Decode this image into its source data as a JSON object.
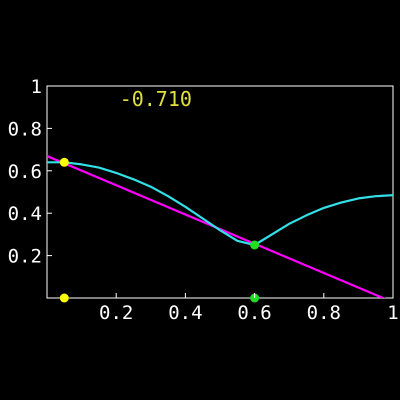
{
  "chart_data": {
    "type": "line",
    "title": "",
    "xlabel": "",
    "ylabel": "",
    "xlim": [
      0,
      1
    ],
    "ylim": [
      0,
      1
    ],
    "grid": false,
    "background": "#000000",
    "frame_color": "#ffffff",
    "x_tick_labels": [
      "0.2",
      "0.4",
      "0.6",
      "0.8",
      "1"
    ],
    "x_tick_values": [
      0.2,
      0.4,
      0.6,
      0.8,
      1.0
    ],
    "y_tick_labels": [
      "0.2",
      "0.4",
      "0.6",
      "0.8",
      "1"
    ],
    "y_tick_values": [
      0.2,
      0.4,
      0.6,
      0.8,
      1.0
    ],
    "annotation": {
      "text": "-0.710",
      "color": "#e0e040",
      "anchor_data": [
        0.21,
        0.905
      ]
    },
    "series": [
      {
        "color": "#ff00ff",
        "x": [
          0.0,
          1.0
        ],
        "y": [
          0.67,
          -0.02
        ]
      },
      {
        "color": "#33e0e8",
        "x": [
          0.0,
          0.05,
          0.1,
          0.15,
          0.2,
          0.25,
          0.3,
          0.35,
          0.4,
          0.45,
          0.5,
          0.55,
          0.6,
          0.65,
          0.7,
          0.75,
          0.8,
          0.85,
          0.9,
          0.95,
          1.0
        ],
        "y": [
          0.64,
          0.64,
          0.63,
          0.615,
          0.59,
          0.56,
          0.525,
          0.48,
          0.43,
          0.375,
          0.32,
          0.27,
          0.25,
          0.3,
          0.35,
          0.39,
          0.425,
          0.45,
          0.47,
          0.48,
          0.485
        ]
      }
    ],
    "points": [
      {
        "x": 0.05,
        "y": 0.64,
        "color": "#ffff00"
      },
      {
        "x": 0.6,
        "y": 0.25,
        "color": "#22dd22"
      },
      {
        "x": 0.05,
        "y": 0.0,
        "color": "#ffff00"
      },
      {
        "x": 0.6,
        "y": 0.0,
        "color": "#22dd22"
      }
    ]
  }
}
